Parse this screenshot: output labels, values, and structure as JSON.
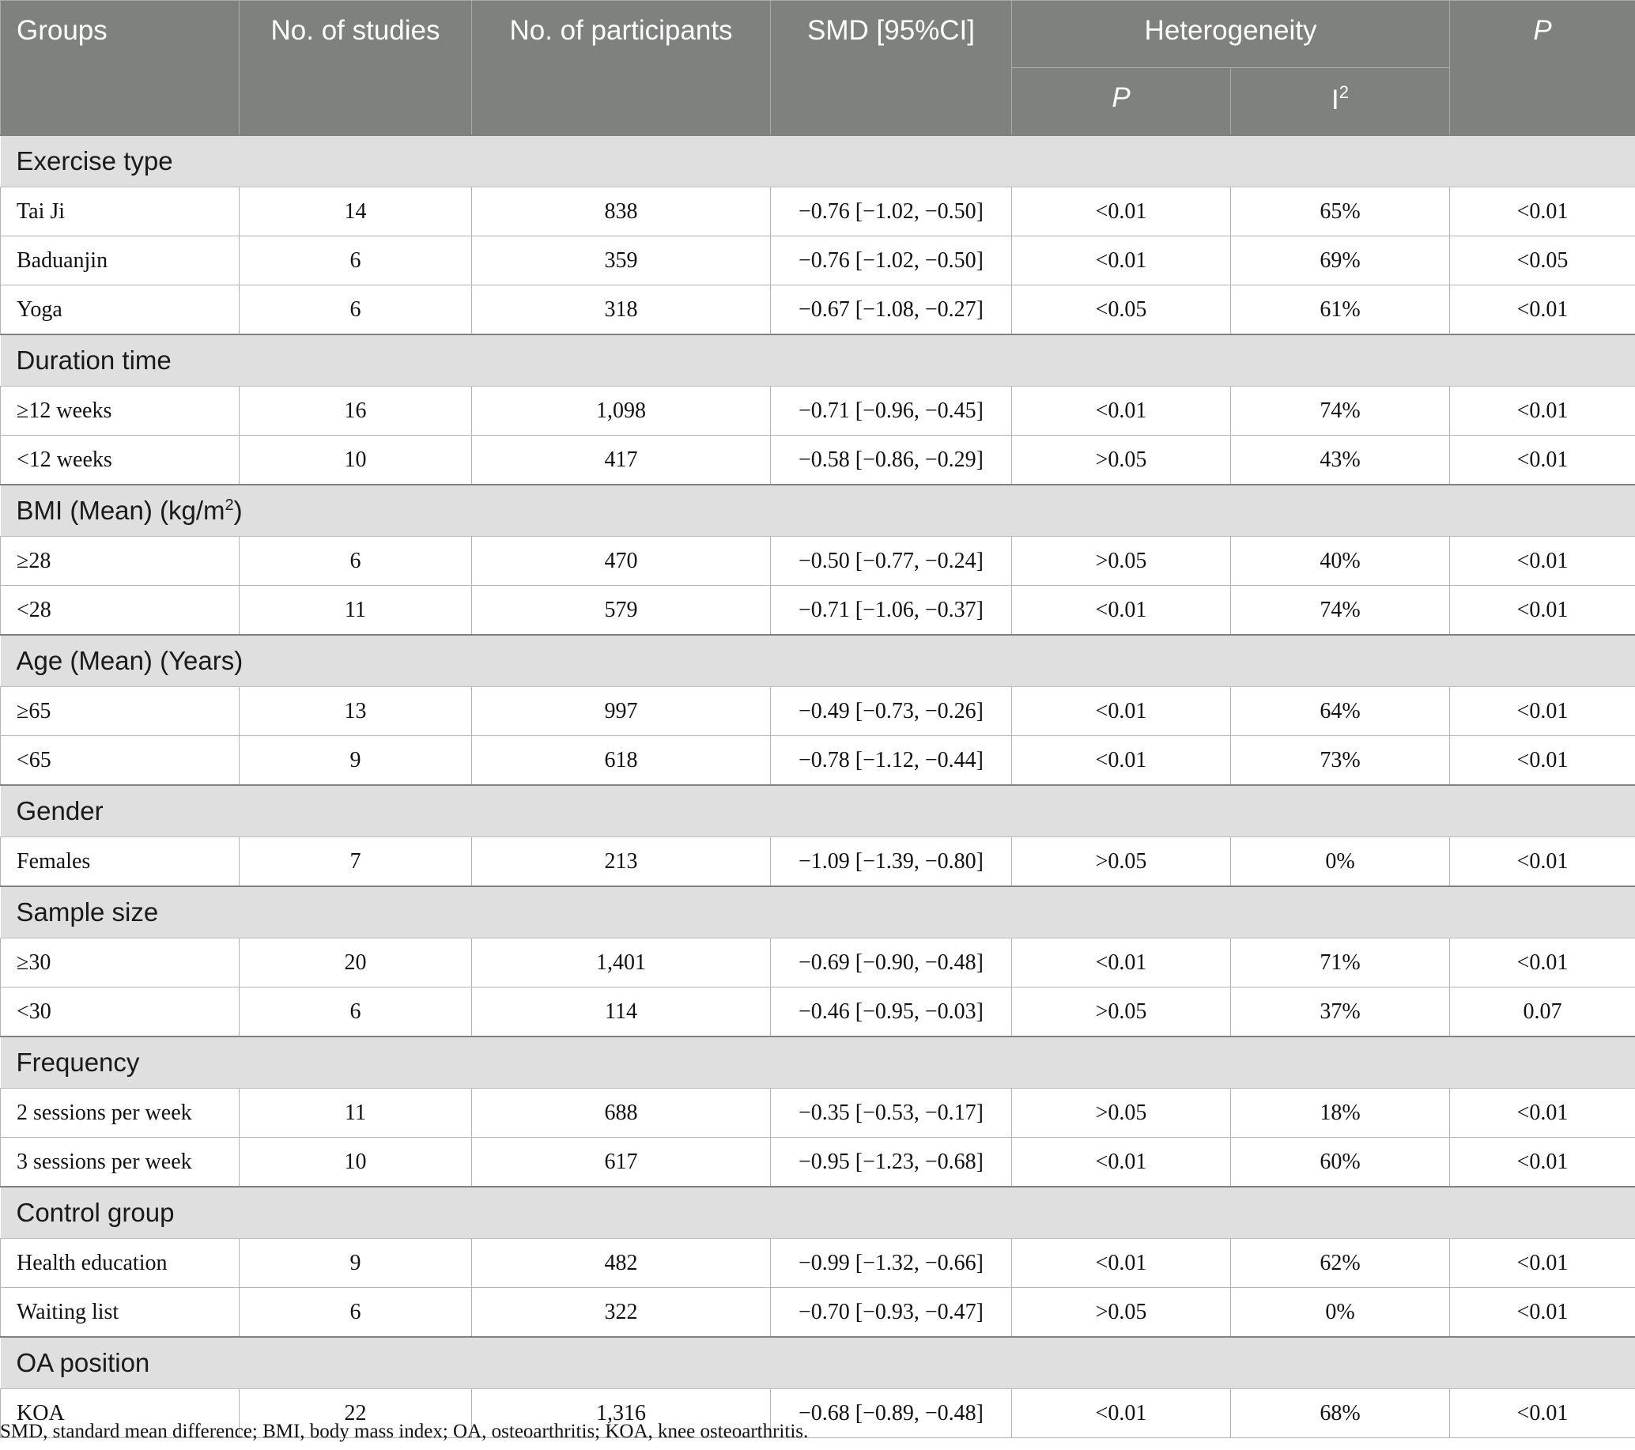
{
  "header": {
    "groups": "Groups",
    "studies": "No. of studies",
    "participants": "No. of participants",
    "smd": "SMD [95%CI]",
    "heterogeneity": "Heterogeneity",
    "het_p": "P",
    "het_i2_base": "I",
    "het_i2_sup": "2",
    "p": "P"
  },
  "sections": [
    {
      "title": "Exercise type",
      "rows": [
        {
          "label": "Tai Ji",
          "studies": "14",
          "participants": "838",
          "smd": "−0.76 [−1.02, −0.50]",
          "het_p": "<0.01",
          "i2": "65%",
          "p": "<0.01"
        },
        {
          "label": "Baduanjin",
          "studies": "6",
          "participants": "359",
          "smd": "−0.76 [−1.02, −0.50]",
          "het_p": "<0.01",
          "i2": "69%",
          "p": "<0.05"
        },
        {
          "label": "Yoga",
          "studies": "6",
          "participants": "318",
          "smd": "−0.67 [−1.08, −0.27]",
          "het_p": "<0.05",
          "i2": "61%",
          "p": "<0.01"
        }
      ]
    },
    {
      "title": "Duration time",
      "rows": [
        {
          "label": "≥12 weeks",
          "studies": "16",
          "participants": "1,098",
          "smd": "−0.71 [−0.96, −0.45]",
          "het_p": "<0.01",
          "i2": "74%",
          "p": "<0.01"
        },
        {
          "label": "<12 weeks",
          "studies": "10",
          "participants": "417",
          "smd": "−0.58 [−0.86, −0.29]",
          "het_p": ">0.05",
          "i2": "43%",
          "p": "<0.01"
        }
      ]
    },
    {
      "title": "BMI (Mean) (kg/m",
      "title_sup": "2",
      "title_tail": ")",
      "rows": [
        {
          "label": "≥28",
          "studies": "6",
          "participants": "470",
          "smd": "−0.50 [−0.77, −0.24]",
          "het_p": ">0.05",
          "i2": "40%",
          "p": "<0.01"
        },
        {
          "label": "<28",
          "studies": "11",
          "participants": "579",
          "smd": "−0.71 [−1.06, −0.37]",
          "het_p": "<0.01",
          "i2": "74%",
          "p": "<0.01"
        }
      ]
    },
    {
      "title": "Age (Mean) (Years)",
      "rows": [
        {
          "label": "≥65",
          "studies": "13",
          "participants": "997",
          "smd": "−0.49 [−0.73, −0.26]",
          "het_p": "<0.01",
          "i2": "64%",
          "p": "<0.01"
        },
        {
          "label": "<65",
          "studies": "9",
          "participants": "618",
          "smd": "−0.78 [−1.12, −0.44]",
          "het_p": "<0.01",
          "i2": "73%",
          "p": "<0.01"
        }
      ]
    },
    {
      "title": "Gender",
      "rows": [
        {
          "label": "Females",
          "studies": "7",
          "participants": "213",
          "smd": "−1.09 [−1.39, −0.80]",
          "het_p": ">0.05",
          "i2": "0%",
          "p": "<0.01"
        }
      ]
    },
    {
      "title": "Sample size",
      "rows": [
        {
          "label": "≥30",
          "studies": "20",
          "participants": "1,401",
          "smd": "−0.69 [−0.90, −0.48]",
          "het_p": "<0.01",
          "i2": "71%",
          "p": "<0.01"
        },
        {
          "label": "<30",
          "studies": "6",
          "participants": "114",
          "smd": "−0.46 [−0.95, −0.03]",
          "het_p": ">0.05",
          "i2": "37%",
          "p": "0.07"
        }
      ]
    },
    {
      "title": "Frequency",
      "rows": [
        {
          "label": "2 sessions per week",
          "studies": "11",
          "participants": "688",
          "smd": "−0.35 [−0.53, −0.17]",
          "het_p": ">0.05",
          "i2": "18%",
          "p": "<0.01"
        },
        {
          "label": "3 sessions per week",
          "studies": "10",
          "participants": "617",
          "smd": "−0.95 [−1.23, −0.68]",
          "het_p": "<0.01",
          "i2": "60%",
          "p": "<0.01"
        }
      ]
    },
    {
      "title": "Control group",
      "rows": [
        {
          "label": "Health education",
          "studies": "9",
          "participants": "482",
          "smd": "−0.99 [−1.32, −0.66]",
          "het_p": "<0.01",
          "i2": "62%",
          "p": "<0.01"
        },
        {
          "label": "Waiting list",
          "studies": "6",
          "participants": "322",
          "smd": "−0.70 [−0.93, −0.47]",
          "het_p": ">0.05",
          "i2": "0%",
          "p": "<0.01"
        }
      ]
    },
    {
      "title": "OA position",
      "rows": [
        {
          "label": "KOA",
          "studies": "22",
          "participants": "1,316",
          "smd": "−0.68 [−0.89, −0.48]",
          "het_p": "<0.01",
          "i2": "68%",
          "p": "<0.01"
        }
      ]
    }
  ],
  "footnote": "SMD, standard mean difference; BMI, body mass index; OA, osteoarthritis; KOA, knee osteoarthritis.",
  "colors": {
    "header_bg": "#7f817f",
    "section_bg": "#e0dfe0"
  }
}
